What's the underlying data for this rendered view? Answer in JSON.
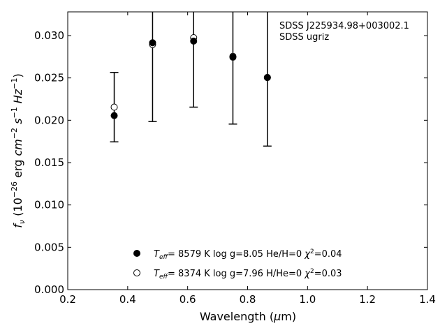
{
  "chart_data": {
    "type": "scatter",
    "xlabel": "Wavelength (μm)",
    "ylabel": "f_ν (10^-26 erg cm^-2 s^-1 Hz^-1)",
    "xlim": [
      0.2,
      1.4
    ],
    "ylim": [
      0.0,
      0.0328
    ],
    "x_ticks": [
      "0.2",
      "0.4",
      "0.6",
      "0.8",
      "1.0",
      "1.2",
      "1.4"
    ],
    "y_ticks": [
      "0.000",
      "0.005",
      "0.010",
      "0.015",
      "0.020",
      "0.025",
      "0.030"
    ],
    "annotations": [
      "SDSS J225934.98+003002.1",
      "SDSS ugriz"
    ],
    "legend_position": "lower center",
    "observed": {
      "x": [
        0.355,
        0.483,
        0.62,
        0.751,
        0.866
      ],
      "y": [
        0.02155,
        0.02895,
        0.02975,
        0.02755,
        0.02505
      ],
      "yerr": [
        0.0041,
        0.0091,
        0.0082,
        0.008,
        0.0081
      ]
    },
    "series": [
      {
        "name": "T_eff=  8579 K  log g=8.05  He/H=0  χ²=0.04",
        "marker": "filled-circle",
        "x": [
          0.355,
          0.483,
          0.62,
          0.751,
          0.866
        ],
        "y": [
          0.02055,
          0.02915,
          0.02935,
          0.02745,
          0.02505
        ]
      },
      {
        "name": "T_eff=  8374 K  log g=7.96  H/He=0  χ²=0.03",
        "marker": "open-circle",
        "x": [
          0.355,
          0.483,
          0.62,
          0.751,
          0.866
        ],
        "y": [
          0.02155,
          0.02895,
          0.02975,
          0.02755,
          0.02505
        ]
      }
    ]
  }
}
